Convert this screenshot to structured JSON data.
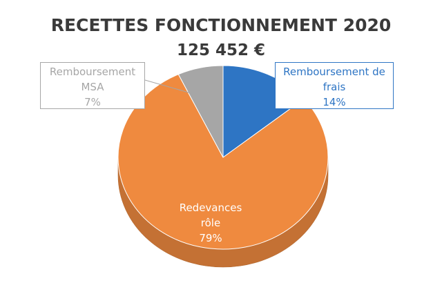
{
  "chart_data": {
    "type": "pie",
    "title": "RECETTES FONCTIONNEMENT 2020",
    "subtitle": "125 452 €",
    "categories": [
      "Remboursement de frais",
      "Redevances rôle",
      "Remboursement MSA"
    ],
    "values": [
      14,
      79,
      7
    ],
    "value_labels": [
      "14%",
      "79%",
      "7%"
    ],
    "colors": [
      "#2e75c4",
      "#ef8a3f",
      "#a6a6a6"
    ]
  }
}
